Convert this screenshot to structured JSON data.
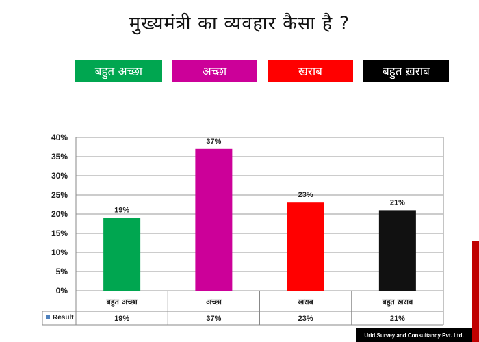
{
  "title": "मुख्यमंत्री का व्यवहार कैसा है ?",
  "legend": [
    {
      "label": "बहुत अच्छा",
      "color": "#00a650"
    },
    {
      "label": "अच्छा",
      "color": "#cc0099"
    },
    {
      "label": "खराब",
      "color": "#ff0000"
    },
    {
      "label": "बहुत ख़राब",
      "color": "#000000"
    }
  ],
  "chart_data": {
    "type": "bar",
    "categories": [
      "बहुत अच्छा",
      "अच्छा",
      "खराब",
      "बहुत ख़राब"
    ],
    "values": [
      19,
      37,
      23,
      21
    ],
    "value_labels": [
      "19%",
      "37%",
      "23%",
      "21%"
    ],
    "colors": [
      "#00a650",
      "#cc0099",
      "#ff0000",
      "#111111"
    ],
    "ylim": [
      0,
      40
    ],
    "yticks": [
      "0%",
      "5%",
      "10%",
      "15%",
      "20%",
      "25%",
      "30%",
      "35%",
      "40%"
    ],
    "grid": true,
    "data_table": {
      "series_name": "Result",
      "values": [
        "19%",
        "37%",
        "23%",
        "21%"
      ]
    }
  },
  "footer": "Urid Survey and Consultancy Pvt. Ltd."
}
